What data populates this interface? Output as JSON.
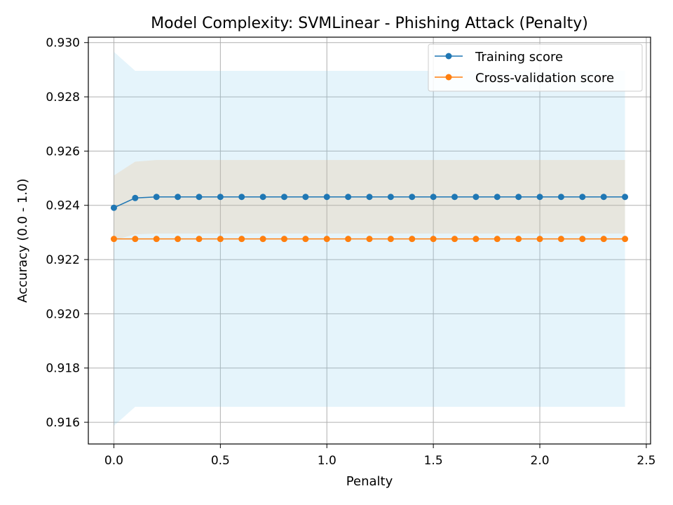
{
  "colors": {
    "training": "#1f77b4",
    "cv": "#ff7f0e",
    "training_band": "#87ceeb",
    "cv_band": "#f4a460",
    "grid": "#b0b0b0",
    "legend_border": "#cccccc"
  },
  "chart_data": {
    "type": "line",
    "title": "Model Complexity: SVMLinear - Phishing Attack (Penalty)",
    "xlabel": "Penalty",
    "ylabel": "Accuracy (0.0 - 1.0)",
    "xlim": [
      -0.12,
      2.52
    ],
    "ylim": [
      0.9152,
      0.9302
    ],
    "xticks": [
      0.0,
      0.5,
      1.0,
      1.5,
      2.0,
      2.5
    ],
    "xtick_labels": [
      "0.0",
      "0.5",
      "1.0",
      "1.5",
      "2.0",
      "2.5"
    ],
    "yticks": [
      0.916,
      0.918,
      0.92,
      0.922,
      0.924,
      0.926,
      0.928,
      0.93
    ],
    "ytick_labels": [
      "0.916",
      "0.918",
      "0.920",
      "0.922",
      "0.924",
      "0.926",
      "0.928",
      "0.930"
    ],
    "grid": true,
    "legend_position": "top-right",
    "x": [
      0.0,
      0.1,
      0.2,
      0.3,
      0.4,
      0.5,
      0.6,
      0.7,
      0.8,
      0.9,
      1.0,
      1.1,
      1.2,
      1.3,
      1.4,
      1.5,
      1.6,
      1.7,
      1.8,
      1.9,
      2.0,
      2.1,
      2.2,
      2.3,
      2.4
    ],
    "series": [
      {
        "name": "Training score",
        "values": [
          0.92391,
          0.92427,
          0.92431,
          0.92431,
          0.92431,
          0.92431,
          0.92431,
          0.92431,
          0.92431,
          0.92431,
          0.92431,
          0.92431,
          0.92431,
          0.92431,
          0.92431,
          0.92431,
          0.92431,
          0.92431,
          0.92431,
          0.92431,
          0.92431,
          0.92431,
          0.92431,
          0.92431,
          0.92431
        ],
        "band_lower": [
          0.92272,
          0.92293,
          0.92296,
          0.92296,
          0.92296,
          0.92296,
          0.92296,
          0.92296,
          0.92296,
          0.92296,
          0.92296,
          0.92296,
          0.92296,
          0.92296,
          0.92296,
          0.92296,
          0.92296,
          0.92296,
          0.92296,
          0.92296,
          0.92296,
          0.92296,
          0.92296,
          0.92296,
          0.92296
        ],
        "band_upper": [
          0.9251,
          0.92561,
          0.92567,
          0.92567,
          0.92567,
          0.92567,
          0.92567,
          0.92567,
          0.92567,
          0.92567,
          0.92567,
          0.92567,
          0.92567,
          0.92567,
          0.92567,
          0.92567,
          0.92567,
          0.92567,
          0.92567,
          0.92567,
          0.92567,
          0.92567,
          0.92567,
          0.92567,
          0.92567
        ]
      },
      {
        "name": "Cross-validation score",
        "values": [
          0.92276,
          0.92276,
          0.92276,
          0.92276,
          0.92276,
          0.92276,
          0.92276,
          0.92276,
          0.92276,
          0.92276,
          0.92276,
          0.92276,
          0.92276,
          0.92276,
          0.92276,
          0.92276,
          0.92276,
          0.92276,
          0.92276,
          0.92276,
          0.92276,
          0.92276,
          0.92276,
          0.92276,
          0.92276
        ],
        "band_lower": [
          0.91587,
          0.91657,
          0.91657,
          0.91657,
          0.91657,
          0.91657,
          0.91657,
          0.91657,
          0.91657,
          0.91657,
          0.91657,
          0.91657,
          0.91657,
          0.91657,
          0.91657,
          0.91657,
          0.91657,
          0.91657,
          0.91657,
          0.91657,
          0.91657,
          0.91657,
          0.91657,
          0.91657,
          0.91657
        ],
        "band_upper": [
          0.92966,
          0.92896,
          0.92896,
          0.92896,
          0.92896,
          0.92896,
          0.92896,
          0.92896,
          0.92896,
          0.92896,
          0.92896,
          0.92896,
          0.92896,
          0.92896,
          0.92896,
          0.92896,
          0.92896,
          0.92896,
          0.92896,
          0.92896,
          0.92896,
          0.92896,
          0.92896,
          0.92896,
          0.92896
        ]
      }
    ]
  }
}
